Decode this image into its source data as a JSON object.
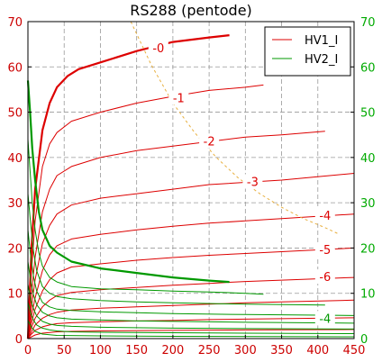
{
  "chart_data": {
    "type": "line",
    "title": "RS288 (pentode)",
    "xlabel": "",
    "ylabel": "",
    "xlim": [
      0,
      450
    ],
    "ylim": [
      0,
      70
    ],
    "x_ticks": [
      0,
      50,
      100,
      150,
      200,
      250,
      300,
      350,
      400,
      450
    ],
    "y_ticks": [
      0,
      10,
      20,
      30,
      40,
      50,
      60,
      70
    ],
    "grid": true,
    "legend_position": "top-right",
    "colors": {
      "hv1": "#dd0000",
      "hv2": "#009900",
      "load_line": "#e8b040",
      "left_axis": "#cc0000",
      "right_axis": "#00aa00"
    },
    "series": [
      {
        "name": "HV1_I",
        "group": "hv1",
        "bold": true,
        "label": "-0",
        "label_at": [
          180,
          64
        ],
        "x": [
          0,
          5,
          10,
          20,
          30,
          40,
          55,
          70,
          100,
          150,
          200,
          250,
          278
        ],
        "y": [
          0,
          20,
          33,
          46,
          52,
          55.5,
          58,
          59.5,
          61,
          63.5,
          65.5,
          66.5,
          67
        ]
      },
      {
        "name": "",
        "group": "hv1",
        "label": "-1",
        "label_at": [
          208,
          53
        ],
        "x": [
          0,
          5,
          10,
          20,
          30,
          40,
          60,
          100,
          150,
          200,
          250,
          300,
          325
        ],
        "y": [
          0,
          15,
          26,
          38,
          43,
          45.5,
          48,
          50,
          52,
          53.5,
          54.8,
          55.5,
          56
        ]
      },
      {
        "name": "",
        "group": "hv1",
        "label": "-2",
        "label_at": [
          250,
          43.5
        ],
        "x": [
          0,
          5,
          10,
          20,
          30,
          40,
          60,
          100,
          150,
          200,
          250,
          300,
          350,
          410
        ],
        "y": [
          0,
          10,
          18,
          28,
          33,
          36,
          38,
          40,
          41.5,
          42.5,
          43.5,
          44.5,
          45,
          45.8
        ]
      },
      {
        "name": "",
        "group": "hv1",
        "label": "-3",
        "label_at": [
          310,
          34.5
        ],
        "x": [
          0,
          5,
          10,
          20,
          30,
          40,
          60,
          100,
          150,
          200,
          250,
          300,
          350,
          450
        ],
        "y": [
          0,
          7,
          13,
          21,
          25,
          27.5,
          29.5,
          31,
          32,
          33,
          34,
          34.5,
          35,
          36.5
        ]
      },
      {
        "name": "",
        "group": "hv1",
        "label": "-4",
        "label_at": [
          410,
          27
        ],
        "x": [
          0,
          5,
          10,
          20,
          30,
          40,
          60,
          100,
          150,
          200,
          250,
          300,
          350,
          450
        ],
        "y": [
          0,
          5,
          9,
          15,
          18.5,
          20.5,
          22,
          23,
          24,
          24.8,
          25.5,
          26,
          26.5,
          27.5
        ]
      },
      {
        "name": "",
        "group": "hv1",
        "label": "-5",
        "label_at": [
          410,
          19.5
        ],
        "x": [
          0,
          5,
          10,
          20,
          30,
          40,
          60,
          100,
          150,
          200,
          250,
          300,
          350,
          450
        ],
        "y": [
          0,
          3.5,
          6.5,
          10.5,
          13,
          14.5,
          15.8,
          16.5,
          17.3,
          17.9,
          18.4,
          18.8,
          19.2,
          20
        ]
      },
      {
        "name": "",
        "group": "hv1",
        "label": "-6",
        "label_at": [
          410,
          13.5
        ],
        "x": [
          0,
          5,
          10,
          20,
          30,
          40,
          60,
          100,
          150,
          200,
          250,
          300,
          350,
          450
        ],
        "y": [
          0,
          2.5,
          4.5,
          7,
          8.5,
          9.5,
          10.2,
          10.8,
          11.3,
          11.8,
          12.2,
          12.6,
          12.9,
          13.5
        ]
      },
      {
        "name": "",
        "group": "hv1",
        "label": "",
        "x": [
          0,
          5,
          10,
          20,
          30,
          40,
          60,
          100,
          150,
          200,
          250,
          300,
          350,
          450
        ],
        "y": [
          0,
          1.5,
          3,
          4.5,
          5.3,
          5.8,
          6.3,
          6.7,
          7,
          7.3,
          7.6,
          7.9,
          8.1,
          8.5
        ]
      },
      {
        "name": "",
        "group": "hv1",
        "label": "",
        "x": [
          0,
          5,
          10,
          20,
          30,
          40,
          60,
          100,
          150,
          200,
          250,
          300,
          350,
          450
        ],
        "y": [
          0,
          1,
          1.8,
          2.6,
          3,
          3.3,
          3.5,
          3.7,
          3.9,
          4,
          4.2,
          4.3,
          4.4,
          4.6
        ]
      },
      {
        "name": "",
        "group": "hv1",
        "label": "",
        "x": [
          0,
          10,
          20,
          40,
          60,
          100,
          200,
          300,
          450
        ],
        "y": [
          0,
          0.8,
          1.2,
          1.5,
          1.6,
          1.7,
          1.8,
          1.9,
          2
        ]
      },
      {
        "name": "HV2_I",
        "group": "hv2",
        "bold": true,
        "label": "",
        "x": [
          0,
          3,
          6,
          10,
          15,
          20,
          30,
          40,
          60,
          100,
          150,
          200,
          250,
          278
        ],
        "y": [
          57,
          50,
          42,
          35,
          28,
          24,
          20.5,
          19,
          17,
          15.5,
          14.5,
          13.5,
          12.8,
          12.5
        ]
      },
      {
        "name": "",
        "group": "hv2",
        "label": "",
        "x": [
          0,
          3,
          6,
          10,
          15,
          20,
          30,
          40,
          60,
          100,
          150,
          200,
          250,
          300,
          325
        ],
        "y": [
          44,
          37,
          30,
          24,
          19,
          16,
          13.5,
          12.5,
          11.5,
          11,
          10.8,
          10.5,
          10.3,
          10,
          9.8
        ]
      },
      {
        "name": "",
        "group": "hv2",
        "label": "",
        "x": [
          0,
          4,
          8,
          12,
          20,
          30,
          40,
          60,
          100,
          150,
          200,
          300,
          410
        ],
        "y": [
          32,
          25,
          19,
          15,
          11.5,
          10,
          9.3,
          8.8,
          8.4,
          8.1,
          7.9,
          7.6,
          7.4
        ]
      },
      {
        "name": "",
        "group": "hv2",
        "label": "",
        "x": [
          0,
          4,
          8,
          12,
          20,
          30,
          40,
          60,
          100,
          150,
          200,
          300,
          450
        ],
        "y": [
          24,
          18,
          13.5,
          10.5,
          8,
          7,
          6.5,
          6.2,
          5.9,
          5.7,
          5.5,
          5.3,
          5.1
        ]
      },
      {
        "name": "",
        "group": "hv2",
        "label": "-4",
        "label_at": [
          410,
          4.3
        ],
        "x": [
          0,
          4,
          8,
          12,
          20,
          30,
          40,
          60,
          100,
          150,
          200,
          300,
          450
        ],
        "y": [
          17,
          12.5,
          9.5,
          7.5,
          5.8,
          5,
          4.6,
          4.3,
          4.1,
          3.9,
          3.8,
          3.6,
          3.4
        ]
      },
      {
        "name": "",
        "group": "hv2",
        "label": "",
        "x": [
          0,
          4,
          8,
          12,
          20,
          30,
          40,
          60,
          100,
          200,
          300,
          450
        ],
        "y": [
          12,
          8.5,
          6.5,
          5,
          3.8,
          3.2,
          2.9,
          2.7,
          2.5,
          2.3,
          2.2,
          2.1
        ]
      },
      {
        "name": "",
        "group": "hv2",
        "label": "",
        "x": [
          0,
          4,
          8,
          12,
          20,
          30,
          40,
          60,
          100,
          200,
          300,
          450
        ],
        "y": [
          8,
          5.5,
          4,
          3,
          2.3,
          1.9,
          1.7,
          1.5,
          1.4,
          1.3,
          1.2,
          1.1
        ]
      },
      {
        "name": "",
        "group": "hv2",
        "label": "",
        "x": [
          0,
          5,
          10,
          20,
          40,
          100,
          200,
          450
        ],
        "y": [
          4,
          2.5,
          1.6,
          1,
          0.7,
          0.6,
          0.5,
          0.4
        ]
      },
      {
        "name": "",
        "group": "load_line",
        "dashed": true,
        "label": "",
        "x": [
          142,
          170,
          200,
          230,
          260,
          290,
          320,
          350,
          380,
          410,
          430
        ],
        "y": [
          70,
          60.5,
          52,
          45.5,
          40,
          35.5,
          32,
          29,
          26.5,
          24.5,
          23
        ]
      }
    ]
  }
}
